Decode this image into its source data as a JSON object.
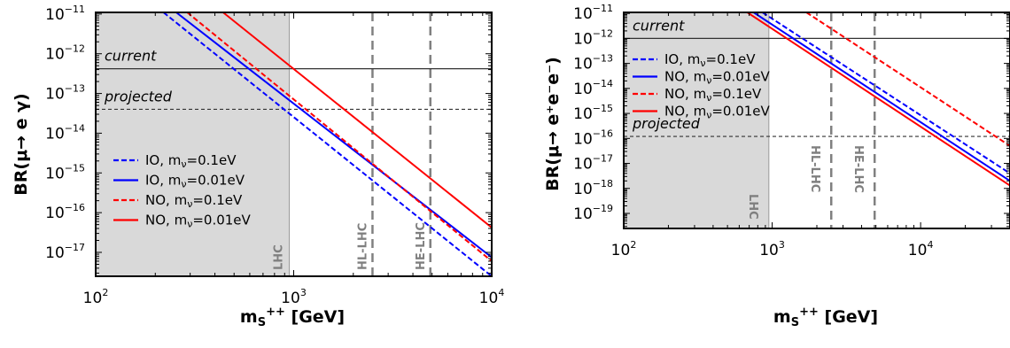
{
  "chart_data": [
    {
      "type": "line",
      "xlabel": "m",
      "xlabel_sub": "S",
      "xlabel_sup": "++",
      "xlabel_unit": " [GeV]",
      "ylabel": "BR(μ→ e γ)",
      "x_scale": "log",
      "y_scale": "log",
      "xlim": [
        100,
        10000
      ],
      "ylim": [
        2.5e-18,
        1.1e-11
      ],
      "x_ticks": [
        {
          "value": 100,
          "base": "10",
          "exp": "2"
        },
        {
          "value": 1000,
          "base": "10",
          "exp": "3"
        },
        {
          "value": 10000,
          "base": "10",
          "exp": "4"
        }
      ],
      "y_ticks": [
        {
          "value": 1e-11,
          "base": "10",
          "exp": "−11"
        },
        {
          "value": 1e-12,
          "base": "10",
          "exp": "−12"
        },
        {
          "value": 1e-13,
          "base": "10",
          "exp": "−13"
        },
        {
          "value": 1e-14,
          "base": "10",
          "exp": "−14"
        },
        {
          "value": 1e-15,
          "base": "10",
          "exp": "−15"
        },
        {
          "value": 1e-16,
          "base": "10",
          "exp": "−16"
        },
        {
          "value": 1e-17,
          "base": "10",
          "exp": "−17"
        }
      ],
      "excluded_region": {
        "x_max": 950,
        "label": "LHC",
        "color": "#d9d9d9"
      },
      "vlines": [
        {
          "x": 2500,
          "label": "HL-LHC"
        },
        {
          "x": 4900,
          "label": "HE-LHC"
        }
      ],
      "hlines": [
        {
          "y": 4.2e-13,
          "label": "current",
          "style": "solid"
        },
        {
          "y": 4e-14,
          "label": "projected",
          "style": "dashed"
        }
      ],
      "legend_position": "lower-left",
      "series": [
        {
          "name": "IO, m",
          "name_sub": "ν",
          "name_suffix": "=0.1eV",
          "color": "#0000ff",
          "dash": true,
          "points": [
            [
              220,
              1.1e-11
            ],
            [
              10000,
              2.5e-18
            ]
          ]
        },
        {
          "name": "IO, m",
          "name_sub": "ν",
          "name_suffix": "=0.01eV",
          "color": "#0000ff",
          "dash": false,
          "points": [
            [
              255,
              1.1e-11
            ],
            [
              10000,
              7.5e-18
            ]
          ]
        },
        {
          "name": "NO, m",
          "name_sub": "ν",
          "name_suffix": "=0.1eV",
          "color": "#ff0000",
          "dash": true,
          "points": [
            [
              290,
              1.1e-11
            ],
            [
              10000,
              6e-18
            ]
          ]
        },
        {
          "name": "NO, m",
          "name_sub": "ν",
          "name_suffix": "=0.01eV",
          "color": "#ff0000",
          "dash": false,
          "points": [
            [
              440,
              1.1e-11
            ],
            [
              10000,
              4.2e-17
            ]
          ]
        }
      ]
    },
    {
      "type": "line",
      "xlabel": "m",
      "xlabel_sub": "S",
      "xlabel_sup": "++",
      "xlabel_unit": " [GeV]",
      "ylabel": "BR(μ→ e⁺e⁻e⁻)",
      "x_scale": "log",
      "y_scale": "log",
      "xlim": [
        100,
        40000
      ],
      "ylim": [
        2.5e-20,
        1.1e-11
      ],
      "x_ticks": [
        {
          "value": 100,
          "base": "10",
          "exp": "2"
        },
        {
          "value": 1000,
          "base": "10",
          "exp": "3"
        },
        {
          "value": 10000,
          "base": "10",
          "exp": "4"
        }
      ],
      "y_ticks": [
        {
          "value": 1e-11,
          "base": "10",
          "exp": "−11"
        },
        {
          "value": 1e-12,
          "base": "10",
          "exp": "−12"
        },
        {
          "value": 1e-13,
          "base": "10",
          "exp": "−13"
        },
        {
          "value": 1e-14,
          "base": "10",
          "exp": "−14"
        },
        {
          "value": 1e-15,
          "base": "10",
          "exp": "−15"
        },
        {
          "value": 1e-16,
          "base": "10",
          "exp": "−16"
        },
        {
          "value": 1e-17,
          "base": "10",
          "exp": "−17"
        },
        {
          "value": 1e-18,
          "base": "10",
          "exp": "−18"
        },
        {
          "value": 1e-19,
          "base": "10",
          "exp": "−19"
        }
      ],
      "excluded_region": {
        "x_max": 950,
        "label": "LHC",
        "color": "#d9d9d9"
      },
      "vlines": [
        {
          "x": 2500,
          "label": "HL-LHC"
        },
        {
          "x": 4900,
          "label": "HE-LHC"
        }
      ],
      "hlines": [
        {
          "y": 1e-12,
          "label": "current",
          "style": "solid"
        },
        {
          "y": 1.2e-16,
          "label": "projected",
          "style": "dashed"
        }
      ],
      "legend_position": "upper-left",
      "series": [
        {
          "name": "IO, m",
          "name_sub": "ν",
          "name_suffix": "=0.1eV",
          "color": "#0000ff",
          "dash": true,
          "points": [
            [
              860,
              1.1e-11
            ],
            [
              40000,
              4e-18
            ]
          ]
        },
        {
          "name": "NO, m",
          "name_sub": "ν",
          "name_suffix": "=0.01eV",
          "color": "#0000ff",
          "dash": false,
          "points": [
            [
              750,
              1.1e-11
            ],
            [
              40000,
              2e-18
            ]
          ]
        },
        {
          "name": "NO, m",
          "name_sub": "ν",
          "name_suffix": "=0.1eV",
          "color": "#ff0000",
          "dash": true,
          "points": [
            [
              1700,
              1.1e-11
            ],
            [
              40000,
              5e-17
            ]
          ]
        },
        {
          "name": "NO, m",
          "name_sub": "ν",
          "name_suffix": "=0.01eV",
          "color": "#ff0000",
          "dash": false,
          "points": [
            [
              680,
              1.1e-11
            ],
            [
              40000,
              1.3e-18
            ]
          ]
        }
      ]
    }
  ]
}
